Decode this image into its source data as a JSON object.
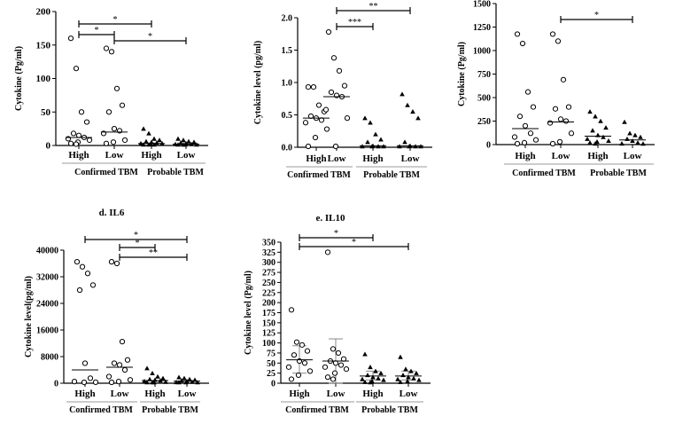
{
  "chart_data": [
    {
      "type": "scatter",
      "title": "",
      "ylabel": "Cytokine (Pg/ml)",
      "ylim": [
        0,
        200
      ],
      "yticks": [
        0,
        50,
        100,
        150,
        200
      ],
      "categories": [
        "High",
        "Low",
        "High",
        "Low"
      ],
      "groups": [
        "Confirmed TBM",
        "Probable TBM"
      ],
      "series": [
        {
          "name": "Confirmed TBM High",
          "marker": "open-circle",
          "values": [
            160,
            115,
            50,
            35,
            18,
            15,
            12,
            10,
            8,
            5,
            3,
            2
          ],
          "median": 12
        },
        {
          "name": "Confirmed TBM Low",
          "marker": "open-circle",
          "values": [
            145,
            140,
            85,
            60,
            50,
            25,
            22,
            18,
            8,
            5,
            3
          ],
          "median": 20
        },
        {
          "name": "Probable TBM High",
          "marker": "filled-triangle",
          "values": [
            25,
            18,
            10,
            8,
            6,
            5,
            4,
            3,
            3,
            2,
            1,
            0,
            0
          ],
          "median": 3
        },
        {
          "name": "Probable TBM Low",
          "marker": "filled-triangle",
          "values": [
            10,
            8,
            6,
            5,
            4,
            3,
            2,
            2,
            1,
            0,
            0,
            0
          ],
          "median": 2
        }
      ],
      "significance": [
        {
          "from": 0,
          "to": 2,
          "label": "*"
        },
        {
          "from": 0,
          "to": 1,
          "label": "*"
        },
        {
          "from": 1,
          "to": 3,
          "label": "*"
        }
      ]
    },
    {
      "type": "scatter",
      "title": "",
      "ylabel": "Cytokine level (pg/ml)",
      "ylim": [
        0,
        2.0
      ],
      "yticks": [
        "0.0",
        "0.5",
        "1.0",
        "1.5",
        "2.0"
      ],
      "categories": [
        "High",
        "Low",
        "High",
        "Low"
      ],
      "groups": [
        "Confirmed TBM",
        "Probable TBM"
      ],
      "series": [
        {
          "name": "Confirmed TBM High",
          "marker": "open-circle",
          "values": [
            0.93,
            0.93,
            0.65,
            0.55,
            0.48,
            0.45,
            0.42,
            0.38,
            0.28,
            0.15,
            0.0
          ],
          "median": 0.45
        },
        {
          "name": "Confirmed TBM Low",
          "marker": "open-circle",
          "values": [
            1.78,
            1.38,
            1.18,
            0.95,
            0.85,
            0.8,
            0.78,
            0.58,
            0.45,
            0.0
          ],
          "median": 0.78
        },
        {
          "name": "Probable TBM High",
          "marker": "filled-triangle",
          "values": [
            0.45,
            0.38,
            0.2,
            0.12,
            0.08,
            0.02,
            0.0,
            0.0,
            0.0,
            0.0
          ],
          "median": 0.02
        },
        {
          "name": "Probable TBM Low",
          "marker": "filled-triangle",
          "values": [
            0.82,
            0.65,
            0.55,
            0.45,
            0.08,
            0.02,
            0.0,
            0.0,
            0.0,
            0.0
          ],
          "median": 0.02
        }
      ],
      "significance": [
        {
          "from": 1,
          "to": 3,
          "label": "**"
        },
        {
          "from": 1,
          "to": 2,
          "label": "***"
        }
      ]
    },
    {
      "type": "scatter",
      "title": "",
      "ylabel": "Cytokine (Pg/ml)",
      "ylim": [
        0,
        1500
      ],
      "yticks": [
        0,
        250,
        500,
        750,
        1000,
        1250,
        1500
      ],
      "categories": [
        "High",
        "Low",
        "High",
        "Low"
      ],
      "groups": [
        "Confirmed TBM",
        "Probable TBM"
      ],
      "series": [
        {
          "name": "Confirmed TBM High",
          "marker": "open-circle",
          "values": [
            1175,
            1075,
            560,
            400,
            300,
            200,
            120,
            80,
            50,
            20,
            5
          ],
          "median": 170
        },
        {
          "name": "Confirmed TBM Low",
          "marker": "open-circle",
          "values": [
            1175,
            1100,
            690,
            400,
            380,
            270,
            250,
            230,
            120,
            30,
            5
          ],
          "median": 240
        },
        {
          "name": "Probable TBM High",
          "marker": "filled-triangle",
          "values": [
            350,
            300,
            250,
            180,
            150,
            100,
            80,
            60,
            40,
            30,
            20,
            10
          ],
          "median": 90
        },
        {
          "name": "Probable TBM Low",
          "marker": "filled-triangle",
          "values": [
            240,
            120,
            100,
            80,
            60,
            40,
            20,
            10,
            5
          ],
          "median": 50
        }
      ],
      "significance": [
        {
          "from": 1,
          "to": 3,
          "label": "*"
        }
      ]
    },
    {
      "type": "scatter",
      "title": "d. IL6",
      "ylabel": "Cytokine level(pg/ml)",
      "ylim": [
        0,
        40000
      ],
      "yticks": [
        0,
        8000,
        16000,
        24000,
        32000,
        40000
      ],
      "categories": [
        "High",
        "Low",
        "High",
        "Low"
      ],
      "groups": [
        "Confirmed TBM",
        "Probable TBM"
      ],
      "series": [
        {
          "name": "Confirmed TBM High",
          "marker": "open-circle",
          "values": [
            36500,
            35000,
            33000,
            29500,
            28000,
            6000,
            1500,
            500,
            300,
            100
          ],
          "median": 4000
        },
        {
          "name": "Confirmed TBM Low",
          "marker": "open-circle",
          "values": [
            36500,
            36000,
            12500,
            7000,
            6000,
            5500,
            4000,
            2000,
            1000,
            500,
            200
          ],
          "median": 4800
        },
        {
          "name": "Probable TBM High",
          "marker": "filled-triangle",
          "values": [
            4500,
            3000,
            2000,
            1500,
            1200,
            1000,
            800,
            600,
            400,
            200,
            100,
            50
          ],
          "median": 800
        },
        {
          "name": "Probable TBM Low",
          "marker": "filled-triangle",
          "values": [
            1800,
            1500,
            1200,
            1000,
            800,
            600,
            400,
            300,
            200,
            100,
            50
          ],
          "median": 600
        }
      ],
      "significance": [
        {
          "from": 0,
          "to": 3,
          "label": "*"
        },
        {
          "from": 1,
          "to": 2,
          "label": "*"
        },
        {
          "from": 1,
          "to": 3,
          "label": "**"
        }
      ]
    },
    {
      "type": "scatter",
      "title": "e. IL10",
      "ylabel": "Cytokine level (Pg/ml)",
      "ylim": [
        0,
        350
      ],
      "yticks": [
        0,
        25,
        50,
        75,
        100,
        125,
        150,
        175,
        200,
        225,
        250,
        275,
        300,
        325,
        350
      ],
      "categories": [
        "High",
        "Low",
        "High",
        "Low"
      ],
      "groups": [
        "Confirmed TBM",
        "Probable TBM"
      ],
      "series": [
        {
          "name": "Confirmed TBM High",
          "marker": "open-circle",
          "values": [
            182,
            102,
            95,
            80,
            70,
            55,
            50,
            40,
            30,
            20,
            10
          ],
          "median": 58,
          "error": [
            25,
            93
          ]
        },
        {
          "name": "Confirmed TBM Low",
          "marker": "open-circle",
          "values": [
            325,
            85,
            75,
            60,
            55,
            50,
            45,
            40,
            35,
            25,
            15,
            10
          ],
          "median": 55,
          "error": [
            0,
            110
          ]
        },
        {
          "name": "Probable TBM High",
          "marker": "filled-triangle",
          "values": [
            72,
            40,
            30,
            25,
            20,
            15,
            12,
            10,
            8,
            5,
            3,
            2
          ],
          "median": 18,
          "error": [
            8,
            30
          ]
        },
        {
          "name": "Probable TBM Low",
          "marker": "filled-triangle",
          "values": [
            65,
            35,
            30,
            25,
            20,
            15,
            12,
            10,
            8,
            5,
            3
          ],
          "median": 18,
          "error": [
            8,
            30
          ]
        }
      ],
      "significance": [
        {
          "from": 0,
          "to": 2,
          "label": "*"
        },
        {
          "from": 0,
          "to": 3,
          "label": "*"
        }
      ]
    }
  ]
}
